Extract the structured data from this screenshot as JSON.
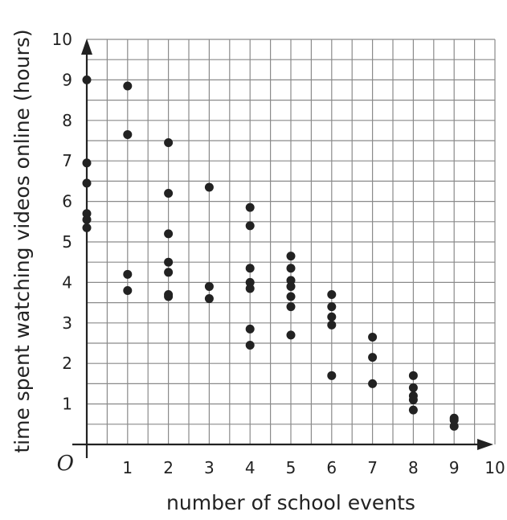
{
  "chart_data": {
    "type": "scatter",
    "title": "",
    "xlabel": "number of school events",
    "ylabel": "time spent watching videos online (hours)",
    "origin_label": "O",
    "xlim": [
      0,
      10
    ],
    "ylim": [
      0,
      10
    ],
    "grid": true,
    "grid_step": 0.5,
    "x_ticks": [
      "1",
      "2",
      "3",
      "4",
      "5",
      "6",
      "7",
      "8",
      "9",
      "10"
    ],
    "y_ticks": [
      "1",
      "2",
      "3",
      "4",
      "5",
      "6",
      "7",
      "8",
      "9",
      "10"
    ],
    "point_color": "#222222",
    "points": [
      [
        0,
        9.0
      ],
      [
        0,
        6.95
      ],
      [
        0,
        6.45
      ],
      [
        0,
        5.7
      ],
      [
        0,
        5.55
      ],
      [
        0,
        5.35
      ],
      [
        1,
        8.85
      ],
      [
        1,
        7.65
      ],
      [
        1,
        4.2
      ],
      [
        1,
        3.8
      ],
      [
        2,
        7.45
      ],
      [
        2,
        6.2
      ],
      [
        2,
        5.2
      ],
      [
        2,
        4.5
      ],
      [
        2,
        4.25
      ],
      [
        2,
        3.7
      ],
      [
        2,
        3.65
      ],
      [
        3,
        6.35
      ],
      [
        3,
        3.9
      ],
      [
        3,
        3.6
      ],
      [
        4,
        5.85
      ],
      [
        4,
        5.4
      ],
      [
        4,
        4.35
      ],
      [
        4,
        4.0
      ],
      [
        4,
        3.85
      ],
      [
        4,
        2.85
      ],
      [
        4,
        2.45
      ],
      [
        5,
        4.65
      ],
      [
        5,
        4.35
      ],
      [
        5,
        4.05
      ],
      [
        5,
        3.9
      ],
      [
        5,
        3.65
      ],
      [
        5,
        3.4
      ],
      [
        5,
        2.7
      ],
      [
        6,
        3.7
      ],
      [
        6,
        3.4
      ],
      [
        6,
        3.15
      ],
      [
        6,
        2.95
      ],
      [
        6,
        1.7
      ],
      [
        7,
        2.65
      ],
      [
        7,
        2.15
      ],
      [
        7,
        1.5
      ],
      [
        8,
        1.7
      ],
      [
        8,
        1.4
      ],
      [
        8,
        1.2
      ],
      [
        8,
        1.1
      ],
      [
        8,
        0.85
      ],
      [
        9,
        0.65
      ],
      [
        9,
        0.6
      ],
      [
        9,
        0.45
      ]
    ]
  }
}
